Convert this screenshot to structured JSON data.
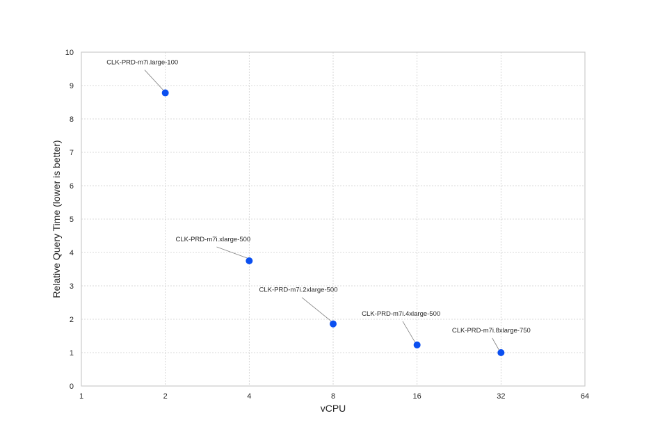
{
  "chart_data": {
    "type": "scatter",
    "title": "",
    "xlabel": "vCPU",
    "ylabel": "Relative Query Time (lower is better)",
    "x_scale": "log2",
    "xlim": [
      1,
      64
    ],
    "ylim": [
      0,
      10
    ],
    "x_ticks": [
      1,
      2,
      4,
      8,
      16,
      32,
      64
    ],
    "y_ticks": [
      0,
      1,
      2,
      3,
      4,
      5,
      6,
      7,
      8,
      9,
      10
    ],
    "grid": true,
    "marker_color": "#0b4ff0",
    "points": [
      {
        "x": 2,
        "y": 8.78,
        "label": "CLK-PRD-m7i.large-100"
      },
      {
        "x": 4,
        "y": 3.75,
        "label": "CLK-PRD-m7i.xlarge-500"
      },
      {
        "x": 8,
        "y": 1.86,
        "label": "CLK-PRD-m7i.2xlarge-500"
      },
      {
        "x": 16,
        "y": 1.23,
        "label": "CLK-PRD-m7i.4xlarge-500"
      },
      {
        "x": 32,
        "y": 1.0,
        "label": "CLK-PRD-m7i.8xlarge-750"
      }
    ]
  }
}
